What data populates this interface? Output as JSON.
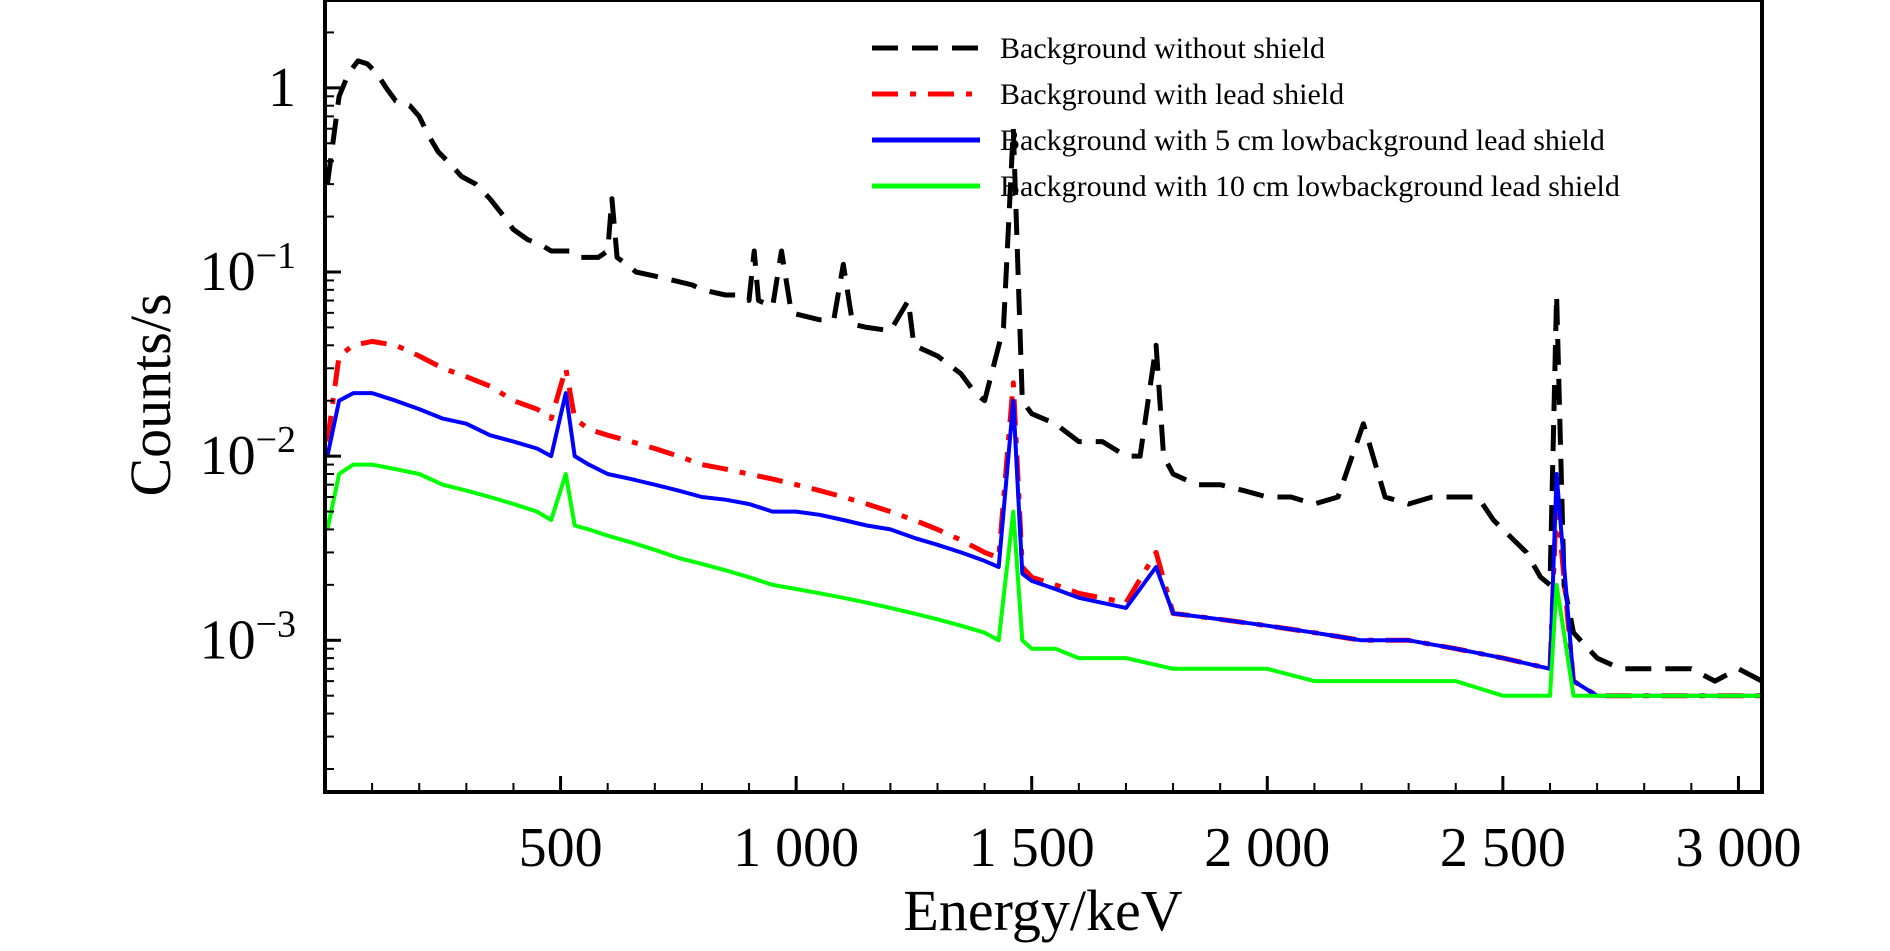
{
  "chart_data": {
    "type": "line",
    "title": "",
    "xlabel": "Energy/keV",
    "ylabel": "Counts/s",
    "xscale": "linear",
    "yscale": "log",
    "xlim": [
      0,
      3050
    ],
    "ylim": [
      0.00015,
      3
    ],
    "grid": false,
    "legend_position": "top-right",
    "x_ticks": [
      500,
      1000,
      1500,
      2000,
      2500,
      3000
    ],
    "x_tick_labels": [
      "500",
      "1 000",
      "1 500",
      "2 000",
      "2 500",
      "3 000"
    ],
    "y_tick_labels": [
      {
        "value": 1,
        "base": "1",
        "exp": ""
      },
      {
        "value": 0.1,
        "base": "10",
        "exp": "−1"
      },
      {
        "value": 0.01,
        "base": "10",
        "exp": "−2"
      },
      {
        "value": 0.001,
        "base": "10",
        "exp": "−3"
      }
    ],
    "series": [
      {
        "name": "Background without shield",
        "color": "#000000",
        "dash": "dashed",
        "x": [
          5,
          30,
          50,
          70,
          90,
          110,
          130,
          150,
          180,
          200,
          220,
          240,
          260,
          290,
          320,
          350,
          380,
          400,
          430,
          460,
          480,
          500,
          520,
          540,
          560,
          580,
          600,
          609,
          620,
          640,
          660,
          700,
          740,
          780,
          800,
          850,
          880,
          900,
          911,
          920,
          950,
          969,
          990,
          1050,
          1080,
          1100,
          1120,
          1150,
          1200,
          1238,
          1250,
          1300,
          1350,
          1380,
          1400,
          1440,
          1461,
          1480,
          1500,
          1550,
          1600,
          1650,
          1700,
          1730,
          1764,
          1780,
          1800,
          1850,
          1900,
          1950,
          2000,
          2050,
          2100,
          2150,
          2204,
          2250,
          2300,
          2350,
          2400,
          2447,
          2480,
          2500,
          2550,
          2580,
          2600,
          2614,
          2630,
          2650,
          2700,
          2750,
          2800,
          2850,
          2900,
          2950,
          3000,
          3050
        ],
        "values": [
          0.3,
          0.9,
          1.2,
          1.4,
          1.35,
          1.2,
          1.0,
          0.85,
          0.8,
          0.7,
          0.55,
          0.45,
          0.4,
          0.33,
          0.3,
          0.25,
          0.2,
          0.17,
          0.15,
          0.14,
          0.13,
          0.13,
          0.13,
          0.12,
          0.12,
          0.12,
          0.13,
          0.25,
          0.12,
          0.11,
          0.1,
          0.095,
          0.09,
          0.085,
          0.08,
          0.075,
          0.075,
          0.07,
          0.13,
          0.07,
          0.065,
          0.13,
          0.06,
          0.055,
          0.055,
          0.11,
          0.052,
          0.05,
          0.048,
          0.07,
          0.04,
          0.035,
          0.028,
          0.022,
          0.02,
          0.05,
          0.6,
          0.02,
          0.017,
          0.015,
          0.012,
          0.012,
          0.01,
          0.01,
          0.04,
          0.01,
          0.008,
          0.007,
          0.007,
          0.0065,
          0.006,
          0.006,
          0.0055,
          0.006,
          0.015,
          0.006,
          0.0055,
          0.006,
          0.006,
          0.006,
          0.0045,
          0.004,
          0.003,
          0.0022,
          0.002,
          0.075,
          0.002,
          0.0011,
          0.0008,
          0.0007,
          0.0007,
          0.0007,
          0.0007,
          0.0006,
          0.0007,
          0.0006
        ]
      },
      {
        "name": "Background with lead shield",
        "color": "#ff0000",
        "dash": "dashdot",
        "x": [
          5,
          30,
          60,
          100,
          150,
          200,
          250,
          300,
          350,
          400,
          450,
          480,
          511,
          530,
          560,
          600,
          650,
          700,
          750,
          800,
          850,
          900,
          950,
          1000,
          1050,
          1100,
          1150,
          1200,
          1250,
          1300,
          1350,
          1400,
          1430,
          1461,
          1480,
          1500,
          1550,
          1600,
          1700,
          1764,
          1800,
          1900,
          2000,
          2100,
          2200,
          2300,
          2400,
          2500,
          2600,
          2614,
          2650,
          2700,
          2800,
          2900,
          3000,
          3050
        ],
        "values": [
          0.012,
          0.035,
          0.04,
          0.042,
          0.04,
          0.035,
          0.03,
          0.027,
          0.024,
          0.02,
          0.018,
          0.016,
          0.03,
          0.016,
          0.014,
          0.013,
          0.012,
          0.011,
          0.01,
          0.009,
          0.0085,
          0.008,
          0.0075,
          0.007,
          0.0065,
          0.006,
          0.0055,
          0.005,
          0.0045,
          0.004,
          0.0035,
          0.003,
          0.0028,
          0.025,
          0.0025,
          0.0022,
          0.002,
          0.0018,
          0.0016,
          0.003,
          0.0014,
          0.0013,
          0.0012,
          0.0011,
          0.001,
          0.001,
          0.0009,
          0.0008,
          0.0007,
          0.006,
          0.0006,
          0.0005,
          0.0005,
          0.0005,
          0.0005,
          0.0005
        ]
      },
      {
        "name": "Background with 5 cm lowbackground lead shield",
        "color": "#0000ff",
        "dash": "solid",
        "x": [
          5,
          30,
          60,
          100,
          150,
          200,
          250,
          300,
          350,
          400,
          450,
          480,
          511,
          530,
          560,
          600,
          650,
          700,
          750,
          800,
          850,
          900,
          950,
          1000,
          1050,
          1100,
          1150,
          1200,
          1250,
          1300,
          1350,
          1400,
          1430,
          1461,
          1480,
          1500,
          1550,
          1600,
          1700,
          1764,
          1800,
          1900,
          2000,
          2100,
          2200,
          2300,
          2400,
          2500,
          2600,
          2614,
          2650,
          2700,
          2800,
          2900,
          3000,
          3050
        ],
        "values": [
          0.01,
          0.02,
          0.022,
          0.022,
          0.02,
          0.018,
          0.016,
          0.015,
          0.013,
          0.012,
          0.011,
          0.01,
          0.022,
          0.01,
          0.009,
          0.008,
          0.0075,
          0.007,
          0.0065,
          0.006,
          0.0058,
          0.0055,
          0.005,
          0.005,
          0.0048,
          0.0045,
          0.0042,
          0.004,
          0.0036,
          0.0033,
          0.003,
          0.0027,
          0.0025,
          0.02,
          0.0023,
          0.0021,
          0.0019,
          0.0017,
          0.0015,
          0.0025,
          0.0014,
          0.0013,
          0.0012,
          0.0011,
          0.001,
          0.001,
          0.0009,
          0.0008,
          0.0007,
          0.008,
          0.0006,
          0.0005,
          0.0005,
          0.0005,
          0.0005,
          0.0005
        ]
      },
      {
        "name": "Background with 10 cm lowbackground lead shield",
        "color": "#00ff00",
        "dash": "solid",
        "x": [
          5,
          30,
          60,
          100,
          150,
          200,
          250,
          300,
          350,
          400,
          450,
          480,
          511,
          530,
          560,
          600,
          650,
          700,
          750,
          800,
          850,
          900,
          950,
          1000,
          1050,
          1100,
          1150,
          1200,
          1250,
          1300,
          1350,
          1400,
          1430,
          1461,
          1480,
          1500,
          1550,
          1600,
          1700,
          1800,
          1900,
          2000,
          2100,
          2200,
          2300,
          2400,
          2500,
          2600,
          2614,
          2650,
          2700,
          2800,
          2900,
          3000,
          3050
        ],
        "values": [
          0.004,
          0.008,
          0.009,
          0.009,
          0.0085,
          0.008,
          0.007,
          0.0065,
          0.006,
          0.0055,
          0.005,
          0.0045,
          0.008,
          0.0042,
          0.004,
          0.0037,
          0.0034,
          0.0031,
          0.0028,
          0.0026,
          0.0024,
          0.0022,
          0.002,
          0.0019,
          0.0018,
          0.0017,
          0.0016,
          0.0015,
          0.0014,
          0.0013,
          0.0012,
          0.0011,
          0.001,
          0.005,
          0.001,
          0.0009,
          0.0009,
          0.0008,
          0.0008,
          0.0007,
          0.0007,
          0.0007,
          0.0006,
          0.0006,
          0.0006,
          0.0006,
          0.0005,
          0.0005,
          0.002,
          0.0005,
          0.0005,
          0.0005,
          0.0005,
          0.0005,
          0.0005
        ]
      }
    ]
  }
}
